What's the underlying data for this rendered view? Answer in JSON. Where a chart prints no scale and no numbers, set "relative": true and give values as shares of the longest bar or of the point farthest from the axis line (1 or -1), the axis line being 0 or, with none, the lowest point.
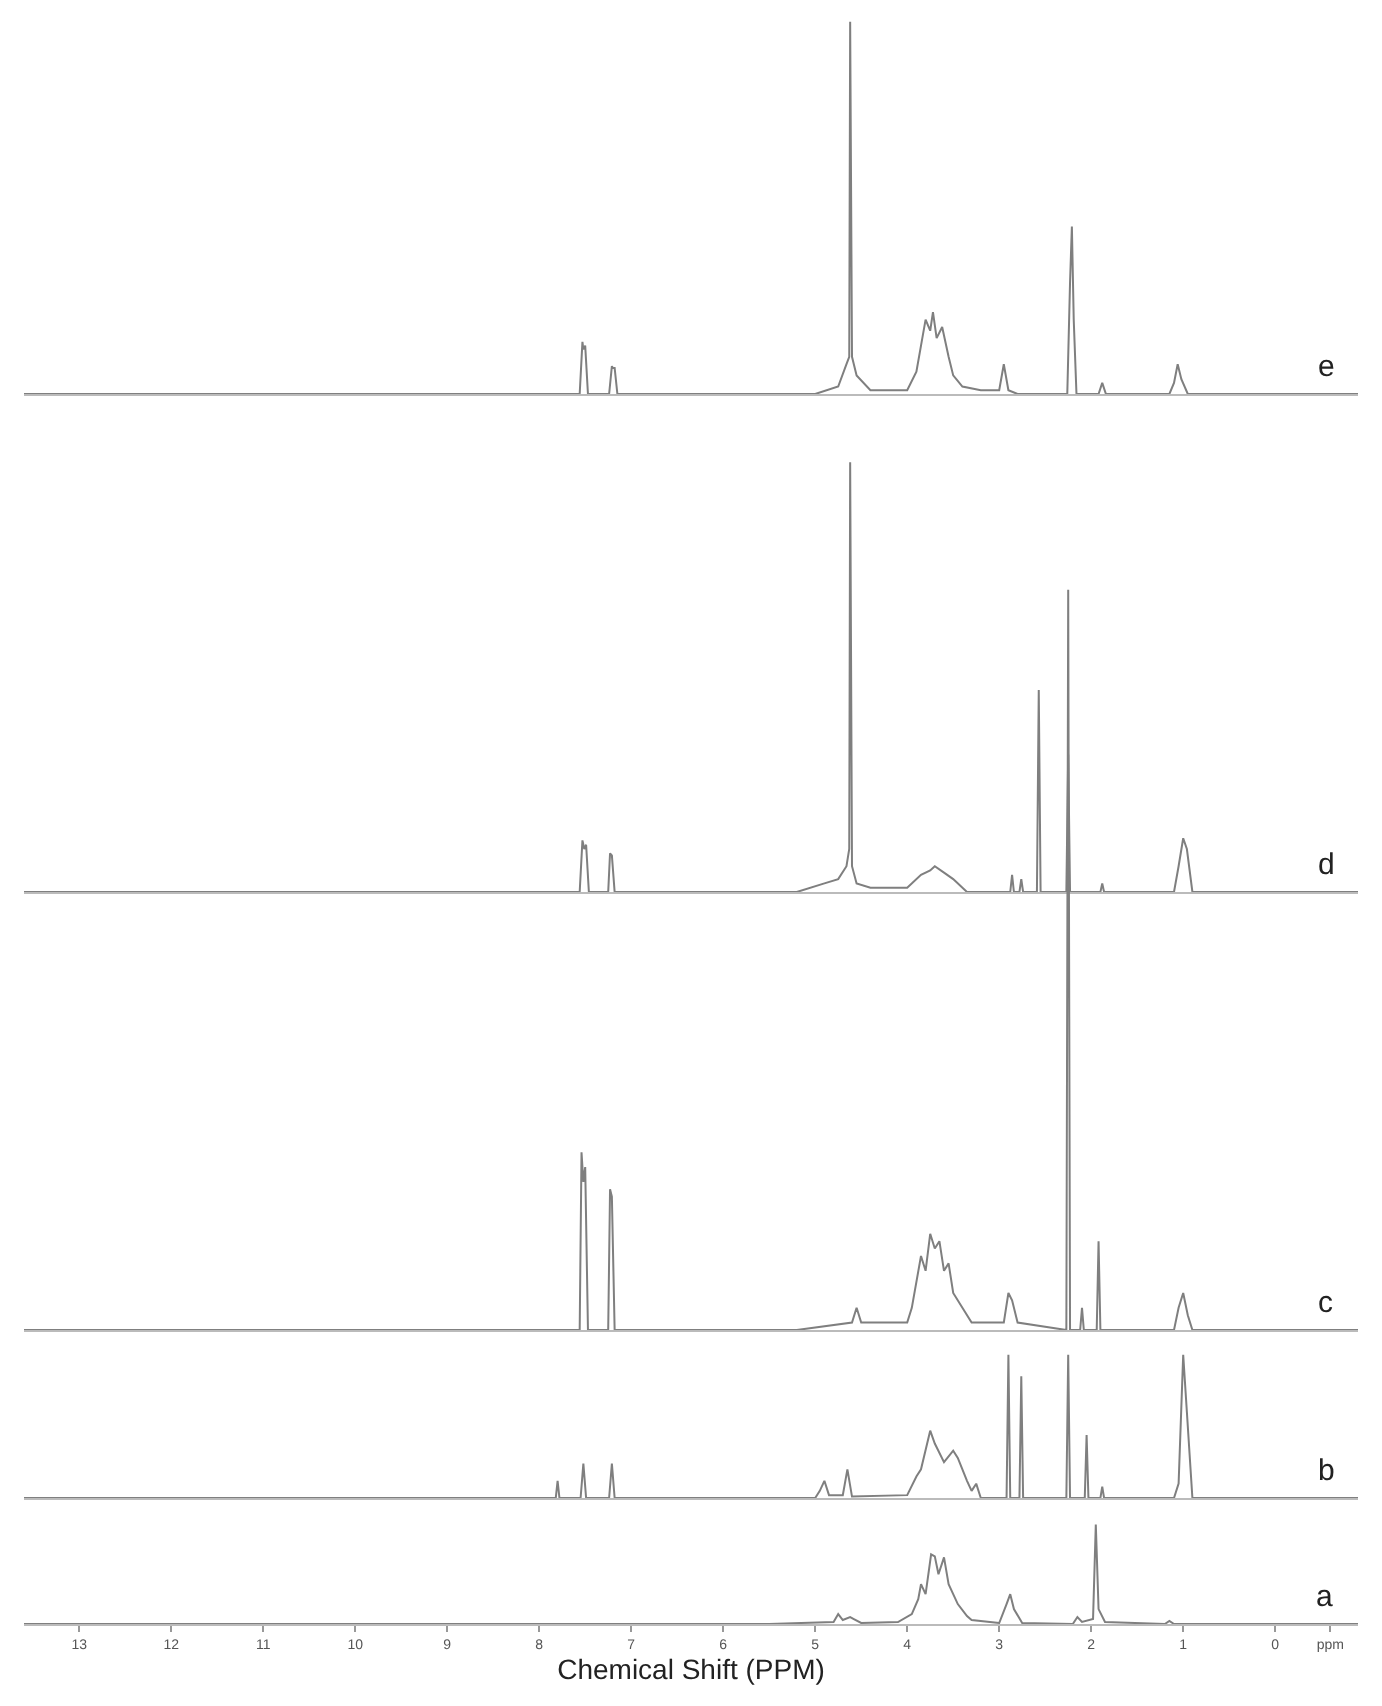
{
  "chart_data": [
    {
      "type": "line",
      "relative": true,
      "xlim": [
        13.6,
        -0.9
      ],
      "tick_labels": false,
      "annotations": [
        "e"
      ],
      "series": [
        {
          "color": "#7f7f7f",
          "x": [
            13.6,
            8.0,
            7.56,
            7.53,
            7.52,
            7.5,
            7.47,
            7.24,
            7.21,
            7.2,
            7.18,
            7.15,
            5.0,
            4.75,
            4.66,
            4.63,
            4.62,
            4.6,
            4.55,
            4.4,
            4.0,
            3.9,
            3.85,
            3.8,
            3.75,
            3.72,
            3.68,
            3.62,
            3.55,
            3.5,
            3.4,
            3.2,
            3.0,
            2.95,
            2.9,
            2.8,
            2.26,
            2.23,
            2.21,
            2.19,
            2.16,
            1.92,
            1.88,
            1.84,
            1.15,
            1.1,
            1.06,
            1.02,
            0.95,
            -0.9
          ],
          "values": [
            0,
            0,
            0,
            0.14,
            0.12,
            0.13,
            0,
            0,
            0.075,
            0.07,
            0.07,
            0,
            0,
            0.02,
            0.08,
            0.1,
            1.0,
            0.1,
            0.05,
            0.01,
            0.01,
            0.06,
            0.13,
            0.2,
            0.17,
            0.22,
            0.15,
            0.18,
            0.1,
            0.05,
            0.02,
            0.01,
            0.01,
            0.08,
            0.01,
            0,
            0,
            0.3,
            0.45,
            0.2,
            0,
            0,
            0.03,
            0,
            0,
            0.03,
            0.08,
            0.04,
            0,
            0
          ]
        }
      ]
    },
    {
      "type": "line",
      "relative": true,
      "xlim": [
        13.6,
        -0.9
      ],
      "tick_labels": false,
      "annotations": [
        "d"
      ],
      "series": [
        {
          "color": "#7f7f7f",
          "x": [
            13.6,
            8.5,
            7.56,
            7.53,
            7.51,
            7.49,
            7.46,
            7.25,
            7.23,
            7.21,
            7.18,
            5.2,
            4.9,
            4.75,
            4.66,
            4.63,
            4.62,
            4.6,
            4.55,
            4.4,
            4.0,
            3.85,
            3.75,
            3.7,
            3.6,
            3.5,
            3.35,
            2.88,
            2.86,
            2.84,
            2.78,
            2.76,
            2.74,
            2.59,
            2.57,
            2.55,
            2.27,
            2.25,
            2.23,
            1.9,
            1.88,
            1.86,
            1.1,
            1.05,
            1.0,
            0.96,
            0.9,
            -0.9
          ],
          "values": [
            0,
            0,
            0,
            0.12,
            0.1,
            0.11,
            0,
            0,
            0.09,
            0.085,
            0,
            0,
            0.02,
            0.03,
            0.06,
            0.1,
            1.0,
            0.06,
            0.02,
            0.01,
            0.01,
            0.04,
            0.05,
            0.06,
            0.045,
            0.03,
            0.0,
            0,
            0.04,
            0,
            0,
            0.03,
            0,
            0,
            0.47,
            0,
            0,
            0.32,
            0,
            0,
            0.02,
            0,
            0,
            0.06,
            0.125,
            0.1,
            0,
            0
          ]
        }
      ]
    },
    {
      "type": "line",
      "relative": true,
      "xlim": [
        13.6,
        -0.9
      ],
      "tick_labels": false,
      "annotations": [
        "c"
      ],
      "series": [
        {
          "color": "#7f7f7f",
          "x": [
            13.6,
            8.0,
            7.56,
            7.54,
            7.52,
            7.5,
            7.47,
            7.25,
            7.23,
            7.21,
            7.18,
            5.2,
            4.6,
            4.55,
            4.5,
            4.0,
            3.95,
            3.85,
            3.8,
            3.75,
            3.7,
            3.65,
            3.6,
            3.55,
            3.5,
            3.4,
            3.3,
            2.95,
            2.9,
            2.86,
            2.8,
            2.27,
            2.25,
            2.23,
            2.12,
            2.1,
            2.08,
            1.94,
            1.92,
            1.9,
            1.1,
            1.05,
            1.0,
            0.95,
            0.9,
            -0.9
          ],
          "values": [
            0,
            0,
            0,
            0.24,
            0.2,
            0.22,
            0,
            0,
            0.19,
            0.18,
            0,
            0,
            0.01,
            0.03,
            0.01,
            0.01,
            0.03,
            0.1,
            0.08,
            0.13,
            0.11,
            0.12,
            0.08,
            0.09,
            0.05,
            0.03,
            0.01,
            0.01,
            0.05,
            0.04,
            0.01,
            0,
            1.0,
            0,
            0,
            0.03,
            0,
            0,
            0.12,
            0,
            0,
            0.03,
            0.05,
            0.02,
            0,
            0
          ]
        }
      ]
    },
    {
      "type": "line",
      "relative": true,
      "xlim": [
        13.6,
        -0.9
      ],
      "tick_labels": false,
      "annotations": [
        "b"
      ],
      "series": [
        {
          "color": "#7f7f7f",
          "x": [
            13.6,
            8.0,
            7.82,
            7.8,
            7.78,
            7.55,
            7.52,
            7.49,
            7.24,
            7.21,
            7.18,
            5.0,
            4.95,
            4.9,
            4.85,
            4.7,
            4.65,
            4.6,
            4.0,
            3.9,
            3.85,
            3.75,
            3.7,
            3.6,
            3.5,
            3.45,
            3.35,
            3.3,
            3.25,
            3.2,
            2.92,
            2.9,
            2.88,
            2.78,
            2.76,
            2.74,
            2.27,
            2.25,
            2.23,
            2.07,
            2.05,
            2.03,
            1.9,
            1.88,
            1.86,
            1.1,
            1.05,
            1.0,
            0.96,
            0.9,
            -0.9
          ],
          "values": [
            0,
            0,
            0,
            0.12,
            0,
            0,
            0.24,
            0,
            0,
            0.24,
            0,
            0,
            0.05,
            0.12,
            0.02,
            0.02,
            0.2,
            0.01,
            0.02,
            0.15,
            0.2,
            0.47,
            0.38,
            0.25,
            0.33,
            0.28,
            0.12,
            0.05,
            0.1,
            0.0,
            0,
            1.0,
            0,
            0,
            0.85,
            0,
            0,
            1.0,
            0,
            0,
            0.44,
            0,
            0,
            0.08,
            0,
            0,
            0.1,
            1.0,
            0.6,
            0,
            0
          ]
        }
      ]
    },
    {
      "type": "line",
      "relative": true,
      "xlim": [
        13.6,
        -0.9
      ],
      "tick_labels": "x",
      "xlabel": "Chemical Shift (PPM)",
      "annotations": [
        "a"
      ],
      "xticks": [
        13,
        12,
        11,
        10,
        9,
        8,
        7,
        6,
        5,
        4,
        3,
        2,
        1,
        0,
        {
          "value": -0.6,
          "label": "ppm"
        }
      ],
      "series": [
        {
          "color": "#7f7f7f",
          "x": [
            13.6,
            5.5,
            4.8,
            4.75,
            4.7,
            4.62,
            4.58,
            4.5,
            4.1,
            3.95,
            3.88,
            3.85,
            3.8,
            3.74,
            3.7,
            3.66,
            3.6,
            3.55,
            3.45,
            3.35,
            3.3,
            3.0,
            2.92,
            2.88,
            2.84,
            2.75,
            2.2,
            2.15,
            2.1,
            1.98,
            1.95,
            1.92,
            1.85,
            1.2,
            1.15,
            1.1,
            -0.9
          ],
          "values": [
            0,
            0,
            0.02,
            0.1,
            0.04,
            0.07,
            0.05,
            0.01,
            0.02,
            0.1,
            0.25,
            0.4,
            0.3,
            0.7,
            0.68,
            0.5,
            0.67,
            0.4,
            0.2,
            0.08,
            0.04,
            0.01,
            0.2,
            0.3,
            0.15,
            0.01,
            0,
            0.07,
            0.02,
            0.05,
            1.0,
            0.15,
            0.02,
            0,
            0.03,
            0,
            0
          ]
        }
      ]
    }
  ]
}
